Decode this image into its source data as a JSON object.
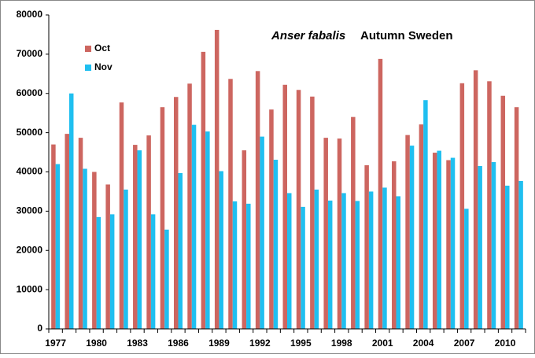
{
  "chart_data": {
    "type": "bar",
    "title": "Anser fabalis",
    "subtitle": "Autumn Sweden",
    "categories": [
      "1977",
      null,
      null,
      "1980",
      null,
      null,
      "1983",
      null,
      null,
      "1986",
      null,
      null,
      "1989",
      null,
      null,
      "1992",
      null,
      null,
      "1995",
      null,
      null,
      "1998",
      null,
      null,
      "2001",
      null,
      null,
      "2004",
      null,
      null,
      "2007",
      null,
      null,
      "2010",
      null
    ],
    "series": [
      {
        "name": "Oct",
        "color": "#cd6660",
        "values": [
          47000,
          49700,
          48700,
          40000,
          36800,
          57700,
          46900,
          49300,
          56500,
          59100,
          62500,
          70600,
          76200,
          63700,
          45500,
          65700,
          55900,
          62200,
          60900,
          59200,
          48700,
          48500,
          54000,
          41700,
          68800,
          42700,
          49400,
          52100,
          44900,
          43000,
          62600,
          65900,
          63100,
          59400,
          56500
        ]
      },
      {
        "name": "Nov",
        "color": "#1fbff0",
        "values": [
          42000,
          60000,
          40800,
          28500,
          29200,
          35500,
          45500,
          29200,
          25300,
          39700,
          52000,
          50300,
          40200,
          32500,
          31900,
          49000,
          43100,
          34600,
          31100,
          35500,
          32700,
          34600,
          32600,
          35000,
          36000,
          33800,
          46700,
          58300,
          45400,
          43600,
          30600,
          41500,
          42500,
          36500,
          37700
        ]
      }
    ],
    "ylim": [
      0,
      80000
    ],
    "yticks": [
      0,
      10000,
      20000,
      30000,
      40000,
      50000,
      60000,
      70000,
      80000
    ],
    "grid": false,
    "legend": "top-left"
  }
}
